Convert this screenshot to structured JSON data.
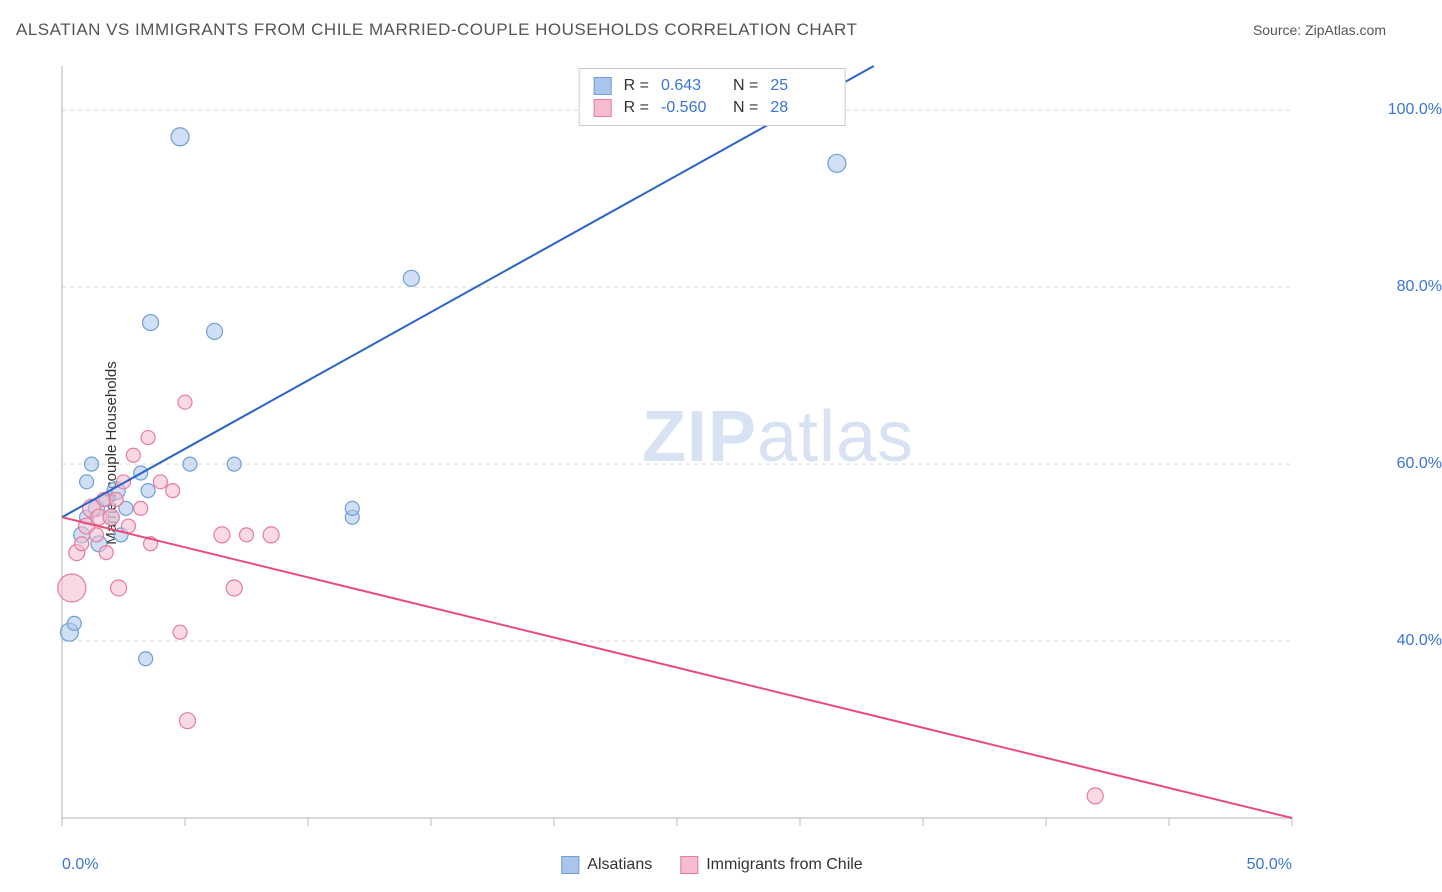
{
  "title": "ALSATIAN VS IMMIGRANTS FROM CHILE MARRIED-COUPLE HOUSEHOLDS CORRELATION CHART",
  "source_label": "Source: ZipAtlas.com",
  "y_axis_label": "Married-couple Households",
  "watermark": {
    "part1": "ZIP",
    "part2": "atlas"
  },
  "chart": {
    "type": "scatter",
    "background_color": "#ffffff",
    "grid_color": "#d9d9d9",
    "axis_color": "#cccccc",
    "tick_color": "#bbbbbb",
    "xlim": [
      0,
      50
    ],
    "ylim": [
      20,
      105
    ],
    "x_ticks": [
      0,
      5,
      10,
      15,
      20,
      25,
      30,
      35,
      40,
      45,
      50
    ],
    "x_tick_labels": {
      "0": "0.0%",
      "50": "50.0%"
    },
    "y_ticks": [
      40,
      60,
      80,
      100
    ],
    "y_tick_labels": {
      "40": "40.0%",
      "60": "60.0%",
      "80": "80.0%",
      "100": "100.0%"
    },
    "series": [
      {
        "name": "Alsatians",
        "color_fill": "#a9c5eb",
        "color_stroke": "#6f9fd8",
        "fill_opacity": 0.55,
        "line_color": "#2b63c7",
        "line_width": 2,
        "R": "0.643",
        "N": "25",
        "regression": {
          "x1": 0,
          "y1": 54,
          "x2": 33,
          "y2": 105
        },
        "points": [
          {
            "x": 0.3,
            "y": 41,
            "r": 9
          },
          {
            "x": 0.5,
            "y": 42,
            "r": 7
          },
          {
            "x": 0.8,
            "y": 52,
            "r": 8
          },
          {
            "x": 1.0,
            "y": 54,
            "r": 7
          },
          {
            "x": 1.0,
            "y": 58,
            "r": 7
          },
          {
            "x": 1.2,
            "y": 60,
            "r": 7
          },
          {
            "x": 1.4,
            "y": 55,
            "r": 8
          },
          {
            "x": 1.5,
            "y": 51,
            "r": 8
          },
          {
            "x": 1.8,
            "y": 56,
            "r": 7
          },
          {
            "x": 2.0,
            "y": 54,
            "r": 8
          },
          {
            "x": 2.2,
            "y": 57,
            "r": 9
          },
          {
            "x": 2.4,
            "y": 52,
            "r": 7
          },
          {
            "x": 2.6,
            "y": 55,
            "r": 7
          },
          {
            "x": 3.2,
            "y": 59,
            "r": 7
          },
          {
            "x": 3.5,
            "y": 57,
            "r": 7
          },
          {
            "x": 3.4,
            "y": 38,
            "r": 7
          },
          {
            "x": 3.6,
            "y": 76,
            "r": 8
          },
          {
            "x": 4.8,
            "y": 97,
            "r": 9
          },
          {
            "x": 5.2,
            "y": 60,
            "r": 7
          },
          {
            "x": 6.2,
            "y": 75,
            "r": 8
          },
          {
            "x": 7.0,
            "y": 60,
            "r": 7
          },
          {
            "x": 11.8,
            "y": 54,
            "r": 7
          },
          {
            "x": 11.8,
            "y": 55,
            "r": 7
          },
          {
            "x": 14.2,
            "y": 81,
            "r": 8
          },
          {
            "x": 31.5,
            "y": 94,
            "r": 9
          }
        ]
      },
      {
        "name": "Immigrants from Chile",
        "color_fill": "#f4bccd",
        "color_stroke": "#e77ba0",
        "fill_opacity": 0.55,
        "line_color": "#e84d7a",
        "line_width": 2,
        "R": "-0.560",
        "N": "28",
        "regression": {
          "x1": 0,
          "y1": 54,
          "x2": 50,
          "y2": 20
        },
        "points": [
          {
            "x": 0.4,
            "y": 46,
            "r": 14
          },
          {
            "x": 0.6,
            "y": 50,
            "r": 8
          },
          {
            "x": 0.8,
            "y": 51,
            "r": 7
          },
          {
            "x": 1.0,
            "y": 53,
            "r": 8
          },
          {
            "x": 1.2,
            "y": 55,
            "r": 9
          },
          {
            "x": 1.4,
            "y": 52,
            "r": 7
          },
          {
            "x": 1.5,
            "y": 54,
            "r": 8
          },
          {
            "x": 1.7,
            "y": 56,
            "r": 7
          },
          {
            "x": 1.8,
            "y": 50,
            "r": 7
          },
          {
            "x": 2.0,
            "y": 54,
            "r": 8
          },
          {
            "x": 2.2,
            "y": 56,
            "r": 7
          },
          {
            "x": 2.3,
            "y": 46,
            "r": 8
          },
          {
            "x": 2.5,
            "y": 58,
            "r": 7
          },
          {
            "x": 2.7,
            "y": 53,
            "r": 7
          },
          {
            "x": 2.9,
            "y": 61,
            "r": 7
          },
          {
            "x": 3.2,
            "y": 55,
            "r": 7
          },
          {
            "x": 3.5,
            "y": 63,
            "r": 7
          },
          {
            "x": 3.6,
            "y": 51,
            "r": 7
          },
          {
            "x": 4.0,
            "y": 58,
            "r": 7
          },
          {
            "x": 4.5,
            "y": 57,
            "r": 7
          },
          {
            "x": 4.8,
            "y": 41,
            "r": 7
          },
          {
            "x": 5.0,
            "y": 67,
            "r": 7
          },
          {
            "x": 5.1,
            "y": 31,
            "r": 8
          },
          {
            "x": 6.5,
            "y": 52,
            "r": 8
          },
          {
            "x": 7.0,
            "y": 46,
            "r": 8
          },
          {
            "x": 7.5,
            "y": 52,
            "r": 7
          },
          {
            "x": 8.5,
            "y": 52,
            "r": 8
          },
          {
            "x": 42.0,
            "y": 22.5,
            "r": 8
          }
        ]
      }
    ],
    "legend_bottom": [
      {
        "label": "Alsatians",
        "fill": "#a9c5eb",
        "stroke": "#6f9fd8"
      },
      {
        "label": "Immigrants from Chile",
        "fill": "#f4bccd",
        "stroke": "#e77ba0"
      }
    ]
  }
}
